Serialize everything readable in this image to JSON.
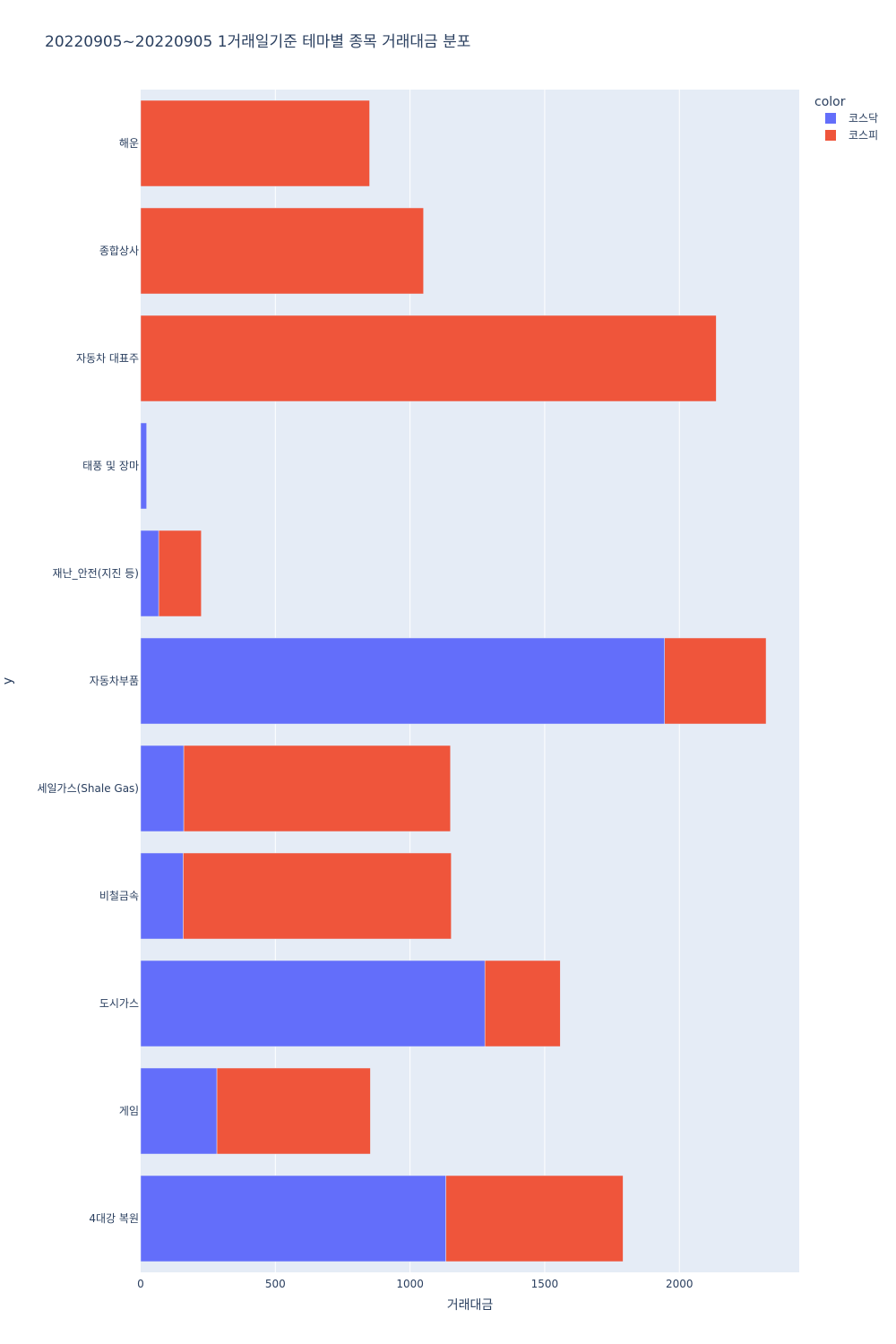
{
  "chart_data": {
    "type": "bar",
    "orientation": "horizontal",
    "barmode": "stack",
    "title": "20220905~20220905 1거래일기준 테마별 종목 거래대금 분포",
    "xlabel": "거래대금",
    "ylabel": "y",
    "xlim": [
      0,
      2445
    ],
    "x_ticks": [
      0,
      500,
      1000,
      1500,
      2000
    ],
    "x_tick_labels": [
      "0",
      "500",
      "1000",
      "1500",
      "2000"
    ],
    "grid": true,
    "legend_title": "color",
    "legend_position": "top-right",
    "categories": [
      "해운",
      "종합상사",
      "자동차 대표주",
      "태풍 및 장마",
      "재난_안전(지진 등)",
      "자동차부품",
      "세일가스(Shale Gas)",
      "비철금속",
      "도시가스",
      "게임",
      "4대강 복원"
    ],
    "series": [
      {
        "name": "코스닥",
        "color": "#636efa",
        "values": [
          0,
          0,
          0,
          22,
          67,
          1945,
          160,
          158,
          1278,
          283,
          1133
        ]
      },
      {
        "name": "코스피",
        "color": "#ef553b",
        "values": [
          850,
          1050,
          2137,
          0,
          158,
          377,
          990,
          995,
          280,
          570,
          658
        ]
      }
    ]
  }
}
